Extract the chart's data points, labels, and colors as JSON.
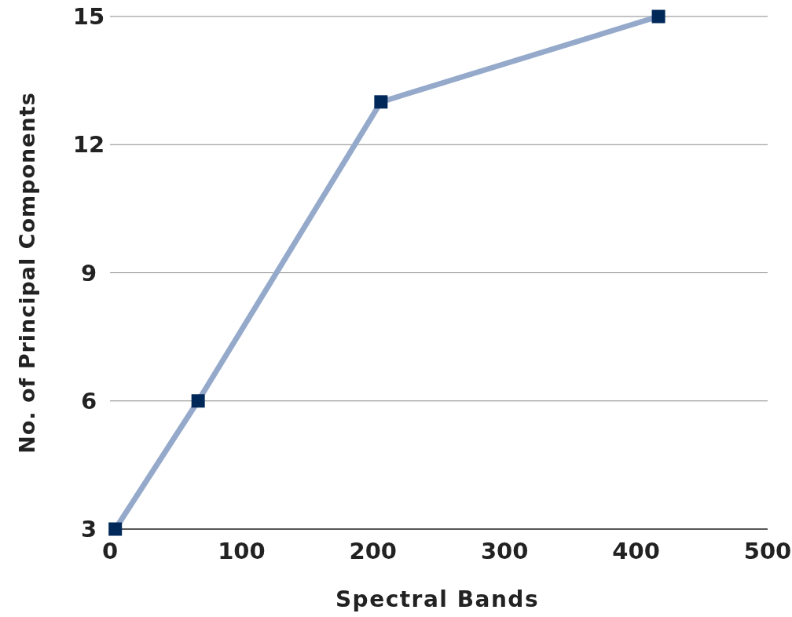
{
  "chart_data": {
    "type": "line",
    "xlabel": "Spectral Bands",
    "ylabel": "No. of Principal Components",
    "x": [
      4,
      67,
      206,
      417
    ],
    "series": [
      {
        "color": "#95aacb",
        "values": [
          3,
          6,
          13,
          15
        ]
      }
    ],
    "xlim": [
      0,
      500
    ],
    "xticks": [
      0,
      100,
      200,
      300,
      400,
      500
    ],
    "ylim": [
      3,
      15
    ],
    "yticks": [
      3,
      6,
      9,
      12,
      15
    ],
    "grid": "y",
    "marker": "square",
    "line_style": "solid"
  }
}
